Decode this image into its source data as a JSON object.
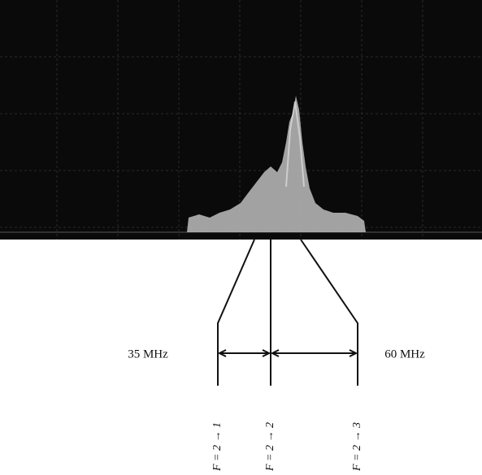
{
  "spacings": {
    "left": "35 MHz",
    "right": "60 MHz"
  },
  "transitions": [
    "F = 2 → 1",
    "F = 2 → 2",
    "F = 2 → 3"
  ]
}
